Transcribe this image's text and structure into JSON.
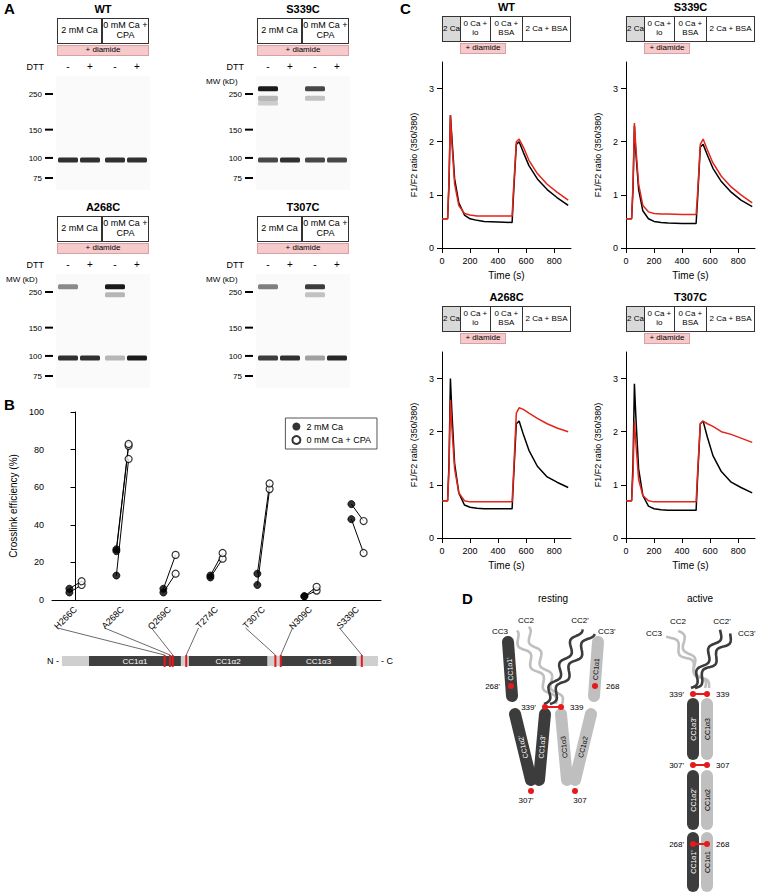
{
  "panel_labels": [
    "A",
    "B",
    "C",
    "D"
  ],
  "blots": {
    "conditions": [
      "2 mM Ca",
      "0 mM Ca + CPA"
    ],
    "treatment": "+ diamide",
    "reagent": "DTT",
    "lane_signs": [
      "-",
      "+",
      "-",
      "+"
    ],
    "markers": [
      250,
      150,
      100,
      75
    ],
    "gels": [
      {
        "title": "WT",
        "lanes": [
          [
            {
              "mw": 97,
              "intensity": 0.9
            }
          ],
          [
            {
              "mw": 97,
              "intensity": 0.9
            }
          ],
          [
            {
              "mw": 97,
              "intensity": 0.9
            }
          ],
          [
            {
              "mw": 97,
              "intensity": 0.9
            }
          ]
        ]
      },
      {
        "title": "S339C",
        "mw_label": "MW (kD)",
        "lanes": [
          [
            {
              "mw": 97,
              "intensity": 0.8
            },
            {
              "mw": 270,
              "intensity": 1.0
            },
            {
              "mw": 235,
              "intensity": 0.3
            },
            {
              "mw": 220,
              "intensity": 0.2
            }
          ],
          [
            {
              "mw": 97,
              "intensity": 0.9
            }
          ],
          [
            {
              "mw": 97,
              "intensity": 0.8
            },
            {
              "mw": 270,
              "intensity": 0.8
            },
            {
              "mw": 235,
              "intensity": 0.25
            }
          ],
          [
            {
              "mw": 97,
              "intensity": 0.8
            }
          ]
        ]
      },
      {
        "title": "A268C",
        "mw_label": "MW (kD)",
        "lanes": [
          [
            {
              "mw": 97,
              "intensity": 0.9
            },
            {
              "mw": 270,
              "intensity": 0.5
            }
          ],
          [
            {
              "mw": 97,
              "intensity": 0.9
            }
          ],
          [
            {
              "mw": 97,
              "intensity": 0.3
            },
            {
              "mw": 270,
              "intensity": 1.0
            },
            {
              "mw": 240,
              "intensity": 0.3
            }
          ],
          [
            {
              "mw": 97,
              "intensity": 1.0
            }
          ]
        ]
      },
      {
        "title": "T307C",
        "mw_label": "MW (kD)",
        "lanes": [
          [
            {
              "mw": 97,
              "intensity": 0.85
            },
            {
              "mw": 270,
              "intensity": 0.55
            }
          ],
          [
            {
              "mw": 97,
              "intensity": 0.9
            }
          ],
          [
            {
              "mw": 97,
              "intensity": 0.4
            },
            {
              "mw": 270,
              "intensity": 0.85
            },
            {
              "mw": 240,
              "intensity": 0.25
            }
          ],
          [
            {
              "mw": 97,
              "intensity": 0.95
            }
          ]
        ]
      }
    ]
  },
  "chart_data": [
    {
      "type": "scatter",
      "categories": [
        "H266C",
        "A268C",
        "Q269C",
        "T274C",
        "T307C",
        "N309C",
        "S339C"
      ],
      "series": [
        {
          "name": "2 mM Ca",
          "marker": "filled",
          "color": "#000000",
          "values": [
            [
              4,
              6
            ],
            [
              13,
              26,
              27
            ],
            [
              4,
              6
            ],
            [
              12,
              13
            ],
            [
              8,
              14
            ],
            [
              2,
              2
            ],
            [
              43,
              51
            ]
          ]
        },
        {
          "name": "0 mM Ca + CPA",
          "marker": "open",
          "color": "#000000",
          "values": [
            [
              8,
              10
            ],
            [
              75,
              82,
              83
            ],
            [
              14,
              24
            ],
            [
              22,
              25
            ],
            [
              59,
              62
            ],
            [
              5,
              7
            ],
            [
              25,
              42
            ]
          ]
        }
      ],
      "y_label": "Crosslink efficiency (%)",
      "ylim": [
        0,
        100
      ],
      "yticks": [
        0,
        20,
        40,
        60,
        80,
        100
      ],
      "legend": "top-right",
      "domain_map": {
        "n_label": "N -",
        "c_label": "- C",
        "range": [
          228,
          345
        ],
        "domains": [
          {
            "label": "CC1α1",
            "start": 238,
            "end": 272
          },
          {
            "label": "CC1α2",
            "start": 275,
            "end": 304
          },
          {
            "label": "CC1α3",
            "start": 309,
            "end": 337
          }
        ]
      }
    },
    {
      "type": "line",
      "title": "WT",
      "protocol": [
        "2 Ca",
        "0 Ca + io",
        "0 Ca + BSA",
        "2 Ca + BSA"
      ],
      "treatment": "+ diamide",
      "x": [
        0,
        40,
        50,
        60,
        70,
        90,
        120,
        160,
        200,
        250,
        300,
        400,
        500,
        510,
        530,
        550,
        580,
        620,
        680,
        750,
        820,
        900
      ],
      "series": [
        {
          "color": "#000000",
          "values": [
            0.55,
            0.55,
            1.2,
            2.5,
            2.1,
            1.3,
            0.85,
            0.62,
            0.55,
            0.52,
            0.5,
            0.49,
            0.48,
            1.0,
            1.95,
            2.0,
            1.8,
            1.55,
            1.3,
            1.1,
            0.95,
            0.8
          ]
        },
        {
          "color": "#e3241b",
          "values": [
            0.55,
            0.55,
            1.3,
            2.5,
            2.0,
            1.2,
            0.8,
            0.65,
            0.62,
            0.6,
            0.6,
            0.6,
            0.6,
            1.1,
            2.0,
            2.05,
            1.9,
            1.65,
            1.4,
            1.2,
            1.05,
            0.9
          ]
        }
      ],
      "x_label": "Time (s)",
      "y_label": "F1/F2 ratio (350/380)",
      "xlim": [
        0,
        920
      ],
      "xticks": [
        0,
        200,
        400,
        600,
        800
      ],
      "ylim": [
        0,
        3.5
      ],
      "yticks": [
        0,
        1,
        2,
        3
      ]
    },
    {
      "type": "line",
      "title": "S339C",
      "protocol": [
        "2 Ca",
        "0 Ca + io",
        "0 Ca + BSA",
        "2 Ca + BSA"
      ],
      "treatment": "+ diamide",
      "x": [
        0,
        40,
        50,
        60,
        70,
        90,
        120,
        160,
        200,
        250,
        300,
        400,
        500,
        510,
        530,
        550,
        580,
        620,
        680,
        750,
        820,
        900
      ],
      "series": [
        {
          "color": "#000000",
          "values": [
            0.55,
            0.55,
            1.1,
            2.3,
            1.8,
            1.1,
            0.7,
            0.55,
            0.5,
            0.48,
            0.47,
            0.46,
            0.46,
            0.9,
            1.9,
            1.95,
            1.75,
            1.5,
            1.25,
            1.05,
            0.9,
            0.78
          ]
        },
        {
          "color": "#e3241b",
          "values": [
            0.55,
            0.55,
            1.2,
            2.35,
            1.9,
            1.2,
            0.8,
            0.68,
            0.65,
            0.64,
            0.64,
            0.63,
            0.63,
            1.0,
            1.95,
            2.05,
            1.85,
            1.6,
            1.35,
            1.15,
            1.0,
            0.85
          ]
        }
      ],
      "x_label": "Time (s)",
      "y_label": "F1/F2 ratio (350/380)",
      "xlim": [
        0,
        920
      ],
      "xticks": [
        0,
        200,
        400,
        600,
        800
      ],
      "ylim": [
        0,
        3.5
      ],
      "yticks": [
        0,
        1,
        2,
        3
      ]
    },
    {
      "type": "line",
      "title": "A268C",
      "protocol": [
        "2 Ca",
        "0 Ca + io",
        "0 Ca + BSA",
        "2 Ca + BSA"
      ],
      "treatment": "+ diamide",
      "x": [
        0,
        40,
        50,
        60,
        70,
        90,
        120,
        160,
        200,
        250,
        300,
        400,
        500,
        510,
        530,
        550,
        580,
        620,
        680,
        750,
        820,
        900
      ],
      "series": [
        {
          "color": "#000000",
          "values": [
            0.7,
            0.7,
            1.4,
            3.0,
            2.4,
            1.4,
            0.85,
            0.62,
            0.58,
            0.56,
            0.55,
            0.55,
            0.55,
            1.1,
            2.15,
            2.2,
            1.95,
            1.65,
            1.35,
            1.15,
            1.05,
            0.95
          ]
        },
        {
          "color": "#e3241b",
          "values": [
            0.7,
            0.7,
            1.3,
            2.6,
            2.1,
            1.3,
            0.85,
            0.7,
            0.68,
            0.68,
            0.68,
            0.68,
            0.68,
            1.2,
            2.35,
            2.45,
            2.42,
            2.35,
            2.25,
            2.15,
            2.07,
            2.0
          ]
        }
      ],
      "x_label": "Time (s)",
      "y_label": "F1/F2 ratio (350/380)",
      "xlim": [
        0,
        920
      ],
      "xticks": [
        0,
        200,
        400,
        600,
        800
      ],
      "ylim": [
        0,
        3.5
      ],
      "yticks": [
        0,
        1,
        2,
        3
      ]
    },
    {
      "type": "line",
      "title": "T307C",
      "protocol": [
        "2 Ca",
        "0 Ca + io",
        "0 Ca + BSA",
        "2 Ca + BSA"
      ],
      "treatment": "+ diamide",
      "x": [
        0,
        40,
        50,
        60,
        70,
        90,
        120,
        160,
        200,
        250,
        300,
        400,
        500,
        510,
        530,
        550,
        580,
        620,
        680,
        750,
        820,
        900
      ],
      "series": [
        {
          "color": "#000000",
          "values": [
            0.7,
            0.7,
            1.4,
            2.9,
            2.3,
            1.3,
            0.8,
            0.6,
            0.55,
            0.53,
            0.52,
            0.52,
            0.52,
            1.1,
            2.15,
            2.2,
            1.9,
            1.55,
            1.25,
            1.05,
            0.95,
            0.85
          ]
        },
        {
          "color": "#e3241b",
          "values": [
            0.7,
            0.7,
            1.2,
            2.2,
            1.8,
            1.1,
            0.8,
            0.7,
            0.68,
            0.68,
            0.68,
            0.68,
            0.68,
            1.2,
            2.15,
            2.2,
            2.15,
            2.1,
            2.0,
            1.95,
            1.88,
            1.8
          ]
        }
      ],
      "x_label": "Time (s)",
      "y_label": "F1/F2 ratio (350/380)",
      "xlim": [
        0,
        920
      ],
      "xticks": [
        0,
        200,
        400,
        600,
        800
      ],
      "ylim": [
        0,
        3.5
      ],
      "yticks": [
        0,
        1,
        2,
        3
      ]
    }
  ],
  "diagram": {
    "states": [
      "resting",
      "active"
    ],
    "dark": {
      "a1": "CC1α1'",
      "a2": "CC1α2'",
      "a3": "CC1α3'",
      "cc2": "CC2'",
      "cc3": "CC3'"
    },
    "light": {
      "a1": "CC1α1",
      "a2": "CC1α2",
      "a3": "CC1α3",
      "cc2": "CC2",
      "cc3": "CC3"
    },
    "sites": {
      "r268": [
        "268'",
        "268"
      ],
      "r307": [
        "307'",
        "307"
      ],
      "r339": [
        "339'",
        "339"
      ]
    }
  }
}
